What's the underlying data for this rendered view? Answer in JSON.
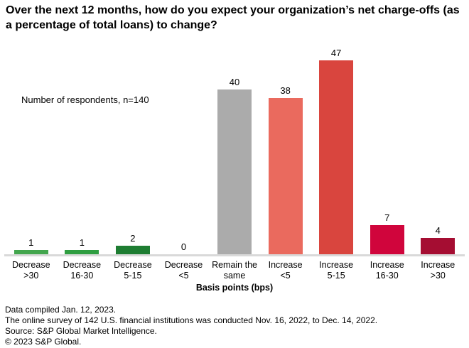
{
  "title": "Over the next 12 months, how do you expect your organization’s net charge-offs (as a percentage of total loans) to change?",
  "note": "Number of respondents, n=140",
  "xlabel": "Basis points (bps)",
  "footnotes": [
    "Data compiled Jan. 12, 2023.",
    "The online survey of 142 U.S. financial institutions was conducted Nov. 16, 2022, to Dec. 14, 2022.",
    "Source: S&P Global Market Intelligence.",
    "© 2023 S&P Global."
  ],
  "chart_data": {
    "type": "bar",
    "title": "Over the next 12 months, how do you expect your organization’s net charge-offs (as a percentage of total loans) to change?",
    "subtitle": "Number of respondents, n=140",
    "categories": [
      "Decrease\n>30",
      "Decrease\n16-30",
      "Decrease\n5-15",
      "Decrease\n<5",
      "Remain the\nsame",
      "Increase\n<5",
      "Increase\n5-15",
      "Increase\n16-30",
      "Increase\n>30"
    ],
    "values": [
      1,
      1,
      2,
      0,
      40,
      38,
      47,
      7,
      4
    ],
    "colors": [
      "#43a64e",
      "#2f9e41",
      "#1e7d32",
      null,
      "#ababab",
      "#ea6a5e",
      "#d9453e",
      "#d0053c",
      "#a50d32"
    ],
    "xlabel": "Basis points (bps)",
    "ylabel": "",
    "ylim": [
      0,
      50
    ],
    "grid": false,
    "legend": "none",
    "value_labels": true
  }
}
